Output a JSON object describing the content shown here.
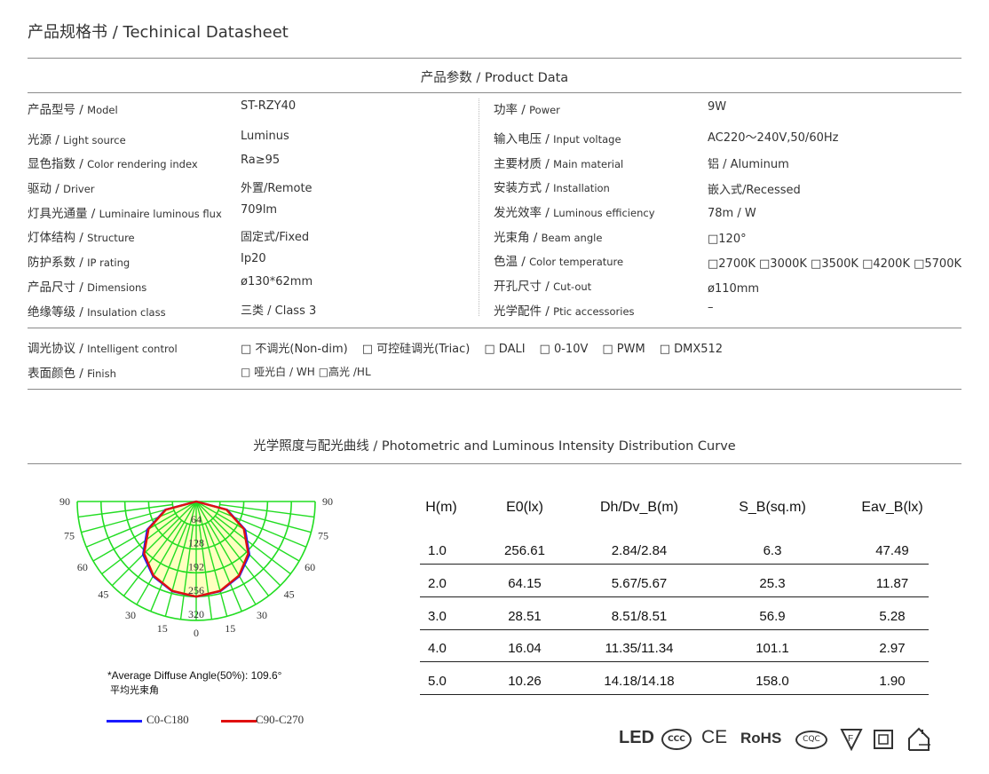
{
  "title": "产品规格书 / Techinical Datasheet",
  "product_data": {
    "heading": "产品参数 / Product Data",
    "left": [
      {
        "zh": "产品型号",
        "en": "Model",
        "value": "ST-RZY40"
      },
      {
        "zh": "光源",
        "en": "Light source",
        "value": "Luminus"
      },
      {
        "zh": "显色指数",
        "en": "Color rendering index",
        "value": "Ra≥95"
      },
      {
        "zh": "驱动",
        "en": "Driver",
        "value": "外置/Remote"
      },
      {
        "zh": "灯具光通量",
        "en": "Luminaire luminous flux",
        "value": "709lm"
      },
      {
        "zh": "灯体结构",
        "en": "Structure",
        "value": "固定式/Fixed"
      },
      {
        "zh": "防护系数",
        "en": "IP rating",
        "value": "Ip20"
      },
      {
        "zh": "产品尺寸",
        "en": "Dimensions",
        "value": "ø130*62mm"
      },
      {
        "zh": "绝缘等级",
        "en": "Insulation class",
        "value": "三类 / Class 3"
      }
    ],
    "right": [
      {
        "zh": "功率",
        "en": "Power",
        "value": "9W"
      },
      {
        "zh": "输入电压",
        "en": "Input voltage",
        "value": "AC220～240V,50/60Hz"
      },
      {
        "zh": "主要材质",
        "en": "Main material",
        "value": "铝 / Aluminum"
      },
      {
        "zh": "安装方式",
        "en": "Installation",
        "value": "嵌入式/Recessed"
      },
      {
        "zh": "发光效率",
        "en": "Luminous efficiency",
        "value": "78m / W"
      },
      {
        "zh": "光束角",
        "en": "Beam angle",
        "value": "□120°"
      },
      {
        "zh": "色温",
        "en": "Color temperature",
        "value": "□2700K □3000K □3500K □4200K □5700K"
      },
      {
        "zh": "开孔尺寸",
        "en": "Cut-out",
        "value": "ø110mm"
      },
      {
        "zh": "光学配件",
        "en": "Ptic accessories",
        "value": "–"
      }
    ],
    "control": {
      "zh": "调光协议",
      "en": "Intelligent control",
      "options": [
        "□ 不调光(Non-dim)",
        "□ 可控硅调光(Triac)",
        "□ DALI",
        "□ 0-10V",
        "□ PWM",
        "□ DMX512"
      ]
    },
    "finish": {
      "zh": "表面颜色",
      "en": "Finish",
      "options": [
        "□ 哑光白 / WH",
        "□高光 /HL"
      ]
    }
  },
  "photometric": {
    "heading": "光学照度与配光曲线 / Photometric and Luminous Intensity Distribution Curve",
    "note": "*Average Diffuse Angle(50%): 109.6°",
    "note_zh": "平均光束角",
    "legend": [
      {
        "name": "C0-C180",
        "color": "#1a1aff"
      },
      {
        "name": "C90-C270",
        "color": "#e01010"
      }
    ],
    "table": {
      "headers": [
        "H(m)",
        "E0(lx)",
        "Dh/Dv_B(m)",
        "S_B(sq.m)",
        "Eav_B(lx)"
      ],
      "rows": [
        [
          "1.0",
          "256.61",
          "2.84/2.84",
          "6.3",
          "47.49"
        ],
        [
          "2.0",
          "64.15",
          "5.67/5.67",
          "25.3",
          "11.87"
        ],
        [
          "3.0",
          "28.51",
          "8.51/8.51",
          "56.9",
          "5.28"
        ],
        [
          "4.0",
          "16.04",
          "11.35/11.34",
          "101.1",
          "2.97"
        ],
        [
          "5.0",
          "10.26",
          "14.18/14.18",
          "158.0",
          "1.90"
        ]
      ]
    }
  },
  "chart_data": {
    "type": "polar",
    "radial_ticks": [
      "64",
      "128",
      "192",
      "256",
      "320"
    ],
    "radial_max": 320,
    "angle_ticks": [
      "90",
      "75",
      "60",
      "45",
      "30",
      "15",
      "0"
    ],
    "grid": true,
    "grid_color": "#22dd22",
    "fill_color": "#ffffc0",
    "series": [
      {
        "name": "C0-C180",
        "color": "#1a1aff",
        "angles": [
          0,
          15,
          30,
          45,
          60,
          75,
          90
        ],
        "values": [
          256,
          250,
          232,
          202,
          152,
          86,
          0
        ]
      },
      {
        "name": "C90-C270",
        "color": "#e01010",
        "angles": [
          0,
          15,
          30,
          45,
          60,
          75,
          90
        ],
        "values": [
          256,
          249,
          230,
          198,
          148,
          84,
          0
        ]
      }
    ]
  },
  "certifications": [
    "LED",
    "CCC",
    "CE",
    "RoHS",
    "CQC",
    "F-mark",
    "class-II",
    "indoor-use"
  ]
}
